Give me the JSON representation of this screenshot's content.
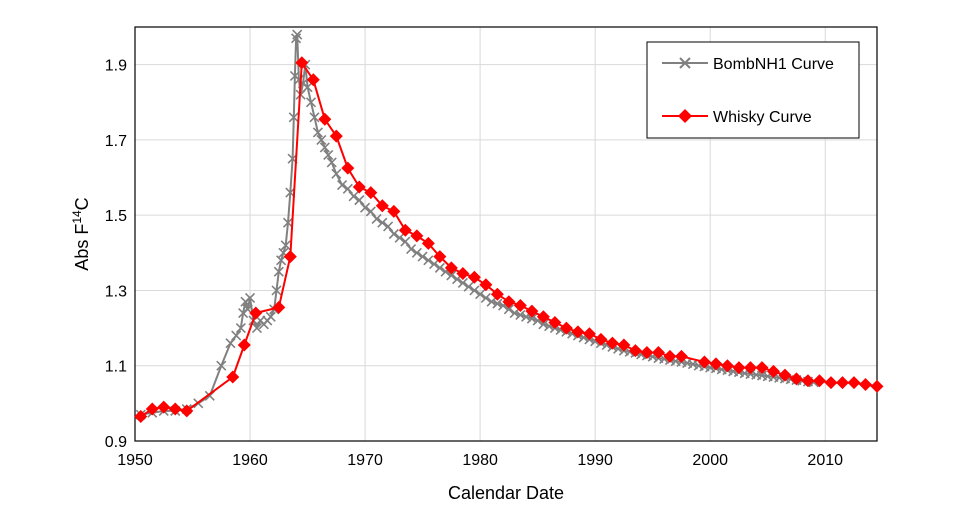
{
  "chart_data": {
    "type": "line",
    "title": "",
    "xlabel": "Calendar Date",
    "ylabel_main": "Abs F",
    "ylabel_sup": "14",
    "ylabel_tail": "C",
    "xlim": [
      1950,
      2014.5
    ],
    "ylim": [
      0.9,
      2.0
    ],
    "xticks": [
      1950,
      1960,
      1970,
      1980,
      1990,
      2000,
      2010
    ],
    "yticks": [
      0.9,
      1.1,
      1.3,
      1.5,
      1.7,
      1.9
    ],
    "ytick_labels": [
      "0.9",
      "1.1",
      "1.3",
      "1.5",
      "1.7",
      "1.9"
    ],
    "grid": true,
    "legend_position": "top-right",
    "colors": {
      "bomb": "#808080",
      "whisky": "#ff0000"
    },
    "series": [
      {
        "name": "BombNH1 Curve",
        "marker": "x",
        "x": [
          1950.5,
          1951.5,
          1952.5,
          1953.5,
          1954.5,
          1955.5,
          1956.5,
          1957.5,
          1958.3,
          1958.8,
          1959.2,
          1959.4,
          1959.6,
          1959.8,
          1960.0,
          1960.3,
          1960.6,
          1960.9,
          1961.2,
          1961.5,
          1961.8,
          1962.1,
          1962.3,
          1962.5,
          1962.7,
          1962.9,
          1963.1,
          1963.3,
          1963.5,
          1963.7,
          1963.8,
          1963.9,
          1964.0,
          1964.1,
          1964.25,
          1964.4,
          1964.6,
          1964.8,
          1965.0,
          1965.3,
          1965.6,
          1965.9,
          1966.2,
          1966.5,
          1966.8,
          1967.1,
          1967.5,
          1968.0,
          1968.5,
          1969.0,
          1969.5,
          1970.0,
          1970.5,
          1971.0,
          1971.5,
          1972.0,
          1972.5,
          1973.0,
          1973.5,
          1974.0,
          1974.5,
          1975.0,
          1975.5,
          1976.0,
          1976.5,
          1977.0,
          1977.5,
          1978.0,
          1978.5,
          1979.0,
          1979.5,
          1980.0,
          1980.5,
          1981.0,
          1981.5,
          1982.0,
          1982.5,
          1983.0,
          1983.5,
          1984.0,
          1984.5,
          1985.0,
          1985.5,
          1986.0,
          1986.5,
          1987.0,
          1987.5,
          1988.0,
          1988.5,
          1989.0,
          1989.5,
          1990.0,
          1990.5,
          1991.0,
          1991.5,
          1992.0,
          1992.5,
          1993.0,
          1993.5,
          1994.0,
          1994.5,
          1995.0,
          1995.5,
          1996.0,
          1996.5,
          1997.0,
          1997.5,
          1998.0,
          1998.5,
          1999.0,
          1999.5,
          2000.0,
          2000.5,
          2001.0,
          2001.5,
          2002.0,
          2002.5,
          2003.0,
          2003.5,
          2004.0,
          2004.5,
          2005.0,
          2005.5,
          2006.0,
          2006.5,
          2007.0,
          2007.5,
          2008.0,
          2008.5,
          2009.0
        ],
        "values": [
          0.97,
          0.975,
          0.98,
          0.98,
          0.985,
          1.0,
          1.02,
          1.1,
          1.16,
          1.18,
          1.2,
          1.24,
          1.27,
          1.25,
          1.28,
          1.22,
          1.2,
          1.22,
          1.21,
          1.22,
          1.23,
          1.25,
          1.3,
          1.35,
          1.38,
          1.4,
          1.42,
          1.48,
          1.56,
          1.65,
          1.76,
          1.87,
          1.97,
          1.98,
          1.86,
          1.82,
          1.85,
          1.9,
          1.84,
          1.8,
          1.76,
          1.72,
          1.7,
          1.68,
          1.66,
          1.64,
          1.61,
          1.58,
          1.57,
          1.55,
          1.54,
          1.52,
          1.51,
          1.49,
          1.48,
          1.47,
          1.45,
          1.44,
          1.43,
          1.41,
          1.4,
          1.39,
          1.38,
          1.37,
          1.36,
          1.35,
          1.34,
          1.33,
          1.32,
          1.31,
          1.3,
          1.29,
          1.28,
          1.27,
          1.265,
          1.26,
          1.25,
          1.24,
          1.235,
          1.23,
          1.225,
          1.22,
          1.21,
          1.205,
          1.2,
          1.195,
          1.19,
          1.185,
          1.18,
          1.175,
          1.17,
          1.165,
          1.16,
          1.155,
          1.15,
          1.145,
          1.14,
          1.137,
          1.134,
          1.13,
          1.127,
          1.124,
          1.12,
          1.118,
          1.115,
          1.112,
          1.11,
          1.107,
          1.104,
          1.1,
          1.098,
          1.095,
          1.093,
          1.09,
          1.088,
          1.085,
          1.083,
          1.08,
          1.078,
          1.076,
          1.074,
          1.072,
          1.07,
          1.068,
          1.066,
          1.064,
          1.062,
          1.06,
          1.058,
          1.056
        ]
      },
      {
        "name": "Whisky Curve",
        "marker": "diamond",
        "x": [
          1950.5,
          1951.5,
          1952.5,
          1953.5,
          1954.5,
          1958.5,
          1959.5,
          1960.5,
          1962.5,
          1963.5,
          1964.5,
          1965.5,
          1966.5,
          1967.5,
          1968.5,
          1969.5,
          1970.5,
          1971.5,
          1972.5,
          1973.5,
          1974.5,
          1975.5,
          1976.5,
          1977.5,
          1978.5,
          1979.5,
          1980.5,
          1981.5,
          1982.5,
          1983.5,
          1984.5,
          1985.5,
          1986.5,
          1987.5,
          1988.5,
          1989.5,
          1990.5,
          1991.5,
          1992.5,
          1993.5,
          1994.5,
          1995.5,
          1996.5,
          1997.5,
          1999.5,
          2000.5,
          2001.5,
          2002.5,
          2003.5,
          2004.5,
          2005.5,
          2006.5,
          2007.5,
          2008.5,
          2009.5,
          2010.5,
          2011.5,
          2012.5,
          2013.5,
          2014.5
        ],
        "values": [
          0.965,
          0.985,
          0.99,
          0.985,
          0.98,
          1.07,
          1.155,
          1.24,
          1.255,
          1.39,
          1.905,
          1.86,
          1.755,
          1.71,
          1.625,
          1.575,
          1.56,
          1.525,
          1.51,
          1.46,
          1.445,
          1.425,
          1.39,
          1.36,
          1.345,
          1.335,
          1.315,
          1.29,
          1.27,
          1.26,
          1.245,
          1.23,
          1.215,
          1.2,
          1.19,
          1.185,
          1.17,
          1.16,
          1.155,
          1.14,
          1.135,
          1.135,
          1.125,
          1.125,
          1.11,
          1.105,
          1.1,
          1.095,
          1.095,
          1.095,
          1.085,
          1.075,
          1.065,
          1.06,
          1.06,
          1.055,
          1.055,
          1.055,
          1.05,
          1.045
        ]
      }
    ]
  }
}
